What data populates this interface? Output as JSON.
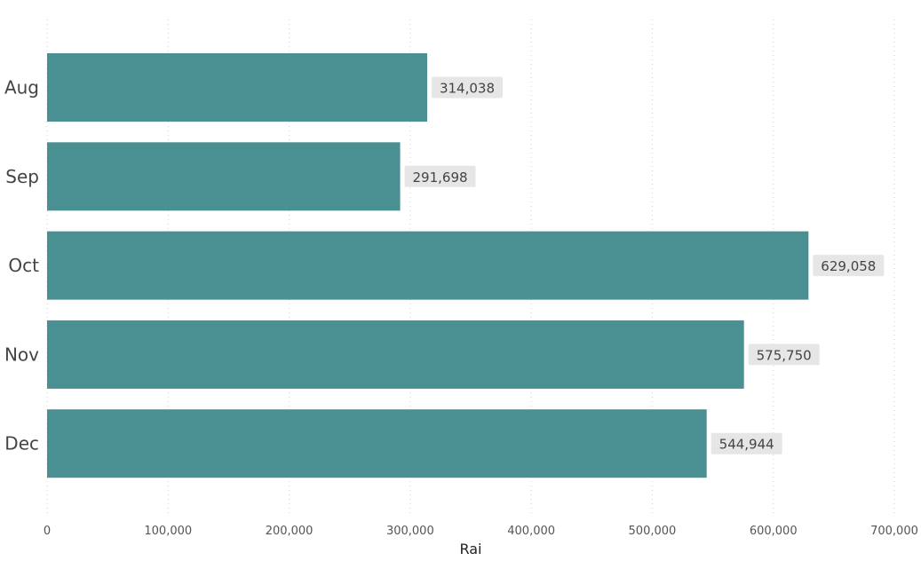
{
  "chart_data": {
    "type": "bar",
    "orientation": "horizontal",
    "categories": [
      "Aug",
      "Sep",
      "Oct",
      "Nov",
      "Dec"
    ],
    "values": [
      314038,
      291698,
      629058,
      575750,
      544944
    ],
    "value_labels": [
      "314,038",
      "291,698",
      "629,058",
      "575,750",
      "544,944"
    ],
    "title": "",
    "xlabel": "Rai",
    "ylabel": "",
    "xlim": [
      0,
      700000
    ],
    "x_ticks": [
      0,
      100000,
      200000,
      300000,
      400000,
      500000,
      600000,
      700000
    ],
    "x_tick_labels": [
      "0",
      "100,000",
      "200,000",
      "300,000",
      "400,000",
      "500,000",
      "600,000",
      "700,000"
    ],
    "grid": true,
    "legend": false,
    "colors": {
      "bar": "#4a8f92",
      "label_bg": "#e6e6e6"
    }
  }
}
